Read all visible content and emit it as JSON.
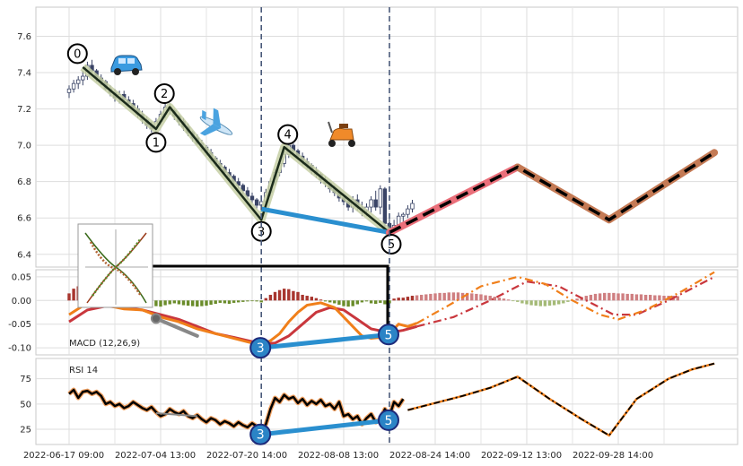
{
  "chart_data": {
    "type": "line",
    "x_tick_labels": [
      "2022-06-17 09:00",
      "2022-07-04 13:00",
      "2022-07-20 14:00",
      "2022-08-08 13:00",
      "2022-08-24 14:00",
      "2022-09-12 13:00",
      "2022-09-28 14:00"
    ],
    "x_tick_index": [
      0,
      20,
      40,
      60,
      80,
      100,
      120
    ],
    "vlines_index": [
      42,
      70
    ],
    "price": {
      "ylim": [
        6.33,
        7.76
      ],
      "yticks": [
        6.4,
        6.6,
        6.8,
        7.0,
        7.2,
        7.4,
        7.6
      ],
      "candles": [
        [
          7.29,
          7.33,
          7.26,
          7.31
        ],
        [
          7.31,
          7.36,
          7.29,
          7.34
        ],
        [
          7.34,
          7.38,
          7.31,
          7.36
        ],
        [
          7.36,
          7.41,
          7.33,
          7.38
        ],
        [
          7.38,
          7.46,
          7.36,
          7.44
        ],
        [
          7.44,
          7.47,
          7.4,
          7.41
        ],
        [
          7.41,
          7.42,
          7.35,
          7.37
        ],
        [
          7.37,
          7.39,
          7.33,
          7.35
        ],
        [
          7.35,
          7.36,
          7.3,
          7.31
        ],
        [
          7.31,
          7.33,
          7.27,
          7.29
        ],
        [
          7.29,
          7.31,
          7.24,
          7.26
        ],
        [
          7.26,
          7.3,
          7.23,
          7.28
        ],
        [
          7.28,
          7.3,
          7.24,
          7.25
        ],
        [
          7.25,
          7.27,
          7.21,
          7.23
        ],
        [
          7.23,
          7.25,
          7.19,
          7.2
        ],
        [
          7.2,
          7.22,
          7.15,
          7.17
        ],
        [
          7.17,
          7.19,
          7.12,
          7.14
        ],
        [
          7.14,
          7.16,
          7.09,
          7.11
        ],
        [
          7.11,
          7.13,
          7.07,
          7.09
        ],
        [
          7.09,
          7.15,
          7.07,
          7.13
        ],
        [
          7.13,
          7.19,
          7.11,
          7.17
        ],
        [
          7.17,
          7.24,
          7.15,
          7.21
        ],
        [
          7.21,
          7.23,
          7.17,
          7.19
        ],
        [
          7.19,
          7.2,
          7.14,
          7.16
        ],
        [
          7.16,
          7.17,
          7.11,
          7.13
        ],
        [
          7.13,
          7.15,
          7.08,
          7.1
        ],
        [
          7.1,
          7.12,
          7.05,
          7.07
        ],
        [
          7.07,
          7.08,
          7.02,
          7.04
        ],
        [
          7.04,
          7.06,
          7.0,
          7.01
        ],
        [
          7.01,
          7.03,
          6.97,
          6.99
        ],
        [
          6.99,
          7.0,
          6.94,
          6.96
        ],
        [
          6.96,
          6.98,
          6.91,
          6.93
        ],
        [
          6.93,
          6.94,
          6.88,
          6.9
        ],
        [
          6.9,
          6.92,
          6.86,
          6.88
        ],
        [
          6.88,
          6.89,
          6.83,
          6.85
        ],
        [
          6.85,
          6.87,
          6.81,
          6.83
        ],
        [
          6.83,
          6.84,
          6.78,
          6.8
        ],
        [
          6.8,
          6.82,
          6.76,
          6.78
        ],
        [
          6.78,
          6.79,
          6.73,
          6.75
        ],
        [
          6.75,
          6.77,
          6.7,
          6.72
        ],
        [
          6.72,
          6.74,
          6.68,
          6.7
        ],
        [
          6.7,
          6.71,
          6.65,
          6.67
        ],
        [
          6.67,
          6.7,
          6.64,
          6.69
        ],
        [
          6.69,
          6.76,
          6.67,
          6.74
        ],
        [
          6.74,
          6.82,
          6.72,
          6.8
        ],
        [
          6.8,
          6.87,
          6.78,
          6.85
        ],
        [
          6.85,
          6.92,
          6.83,
          6.9
        ],
        [
          6.9,
          6.97,
          6.88,
          6.95
        ],
        [
          6.95,
          7.02,
          6.93,
          7.0
        ],
        [
          7.0,
          7.01,
          6.95,
          6.97
        ],
        [
          6.97,
          6.98,
          6.92,
          6.94
        ],
        [
          6.94,
          6.96,
          6.89,
          6.91
        ],
        [
          6.91,
          6.93,
          6.87,
          6.89
        ],
        [
          6.89,
          6.9,
          6.84,
          6.86
        ],
        [
          6.86,
          6.88,
          6.82,
          6.84
        ],
        [
          6.84,
          6.85,
          6.79,
          6.81
        ],
        [
          6.81,
          6.83,
          6.77,
          6.79
        ],
        [
          6.79,
          6.8,
          6.74,
          6.76
        ],
        [
          6.76,
          6.78,
          6.72,
          6.74
        ],
        [
          6.74,
          6.75,
          6.69,
          6.71
        ],
        [
          6.71,
          6.73,
          6.67,
          6.69
        ],
        [
          6.69,
          6.7,
          6.64,
          6.66
        ],
        [
          6.66,
          6.72,
          6.63,
          6.7
        ],
        [
          6.7,
          6.73,
          6.64,
          6.66
        ],
        [
          6.66,
          6.69,
          6.61,
          6.64
        ],
        [
          6.64,
          6.68,
          6.61,
          6.66
        ],
        [
          6.66,
          6.72,
          6.63,
          6.7
        ],
        [
          6.7,
          6.75,
          6.64,
          6.66
        ],
        [
          6.66,
          6.78,
          6.62,
          6.76
        ],
        [
          6.76,
          6.77,
          6.54,
          6.57
        ],
        [
          6.57,
          6.6,
          6.51,
          6.54
        ],
        [
          6.54,
          6.59,
          6.52,
          6.56
        ],
        [
          6.56,
          6.63,
          6.55,
          6.61
        ],
        [
          6.61,
          6.63,
          6.58,
          6.62
        ],
        [
          6.62,
          6.67,
          6.6,
          6.65
        ],
        [
          6.65,
          6.7,
          6.63,
          6.68
        ]
      ],
      "zigzag": [
        [
          3,
          7.43
        ],
        [
          19,
          7.09
        ],
        [
          22,
          7.21
        ],
        [
          42,
          6.59
        ],
        [
          47,
          6.99
        ],
        [
          70,
          6.52
        ]
      ],
      "zigzag_labels": [
        "0",
        "1",
        "2",
        "3",
        "4",
        "5"
      ],
      "divergence": [
        [
          42,
          6.65
        ],
        [
          70,
          6.52
        ]
      ],
      "projection_pink": [
        [
          70,
          6.52
        ],
        [
          98,
          6.88
        ]
      ],
      "projection_dashed": [
        [
          98,
          6.88
        ],
        [
          118,
          6.59
        ],
        [
          141,
          6.96
        ]
      ],
      "icons": [
        "car-icon",
        "airplane-icon",
        "scooter-icon",
        "figure-thumbnail"
      ]
    },
    "macd": {
      "title": "MACD (12,26,9)",
      "ylim": [
        -0.115,
        0.065
      ],
      "yticks": [
        -0.1,
        -0.05,
        0.0,
        0.05
      ],
      "hist": [
        0.015,
        0.025,
        0.03,
        0.028,
        0.02,
        0.01,
        0.005,
        -0.002,
        -0.008,
        -0.012,
        -0.015,
        -0.012,
        -0.014,
        -0.016,
        -0.013,
        -0.011,
        -0.009,
        -0.008,
        -0.01,
        -0.012,
        -0.013,
        -0.01,
        -0.008,
        -0.006,
        -0.008,
        -0.01,
        -0.011,
        -0.012,
        -0.013,
        -0.012,
        -0.011,
        -0.009,
        -0.007,
        -0.005,
        -0.006,
        -0.007,
        -0.005,
        -0.004,
        -0.003,
        -0.002,
        -0.001,
        -0.002,
        -0.004,
        0.005,
        0.012,
        0.018,
        0.022,
        0.025,
        0.024,
        0.02,
        0.018,
        0.012,
        0.01,
        0.008,
        0.005,
        0.002,
        -0.002,
        -0.004,
        -0.006,
        -0.009,
        -0.012,
        -0.013,
        -0.012,
        -0.008,
        -0.004,
        -0.002,
        -0.006,
        -0.007,
        -0.005,
        -0.008,
        -0.006,
        0.004,
        0.006,
        0.006,
        0.008,
        0.01,
        0.011,
        0.012,
        0.013,
        0.014,
        0.015,
        0.016,
        0.016,
        0.017,
        0.017,
        0.017,
        0.016,
        0.016,
        0.015,
        0.014,
        0.013,
        0.011,
        0.01,
        0.008,
        0.006,
        0.004,
        0.002,
        -0.001,
        -0.003,
        -0.006,
        -0.008,
        -0.01,
        -0.011,
        -0.012,
        -0.012,
        -0.011,
        -0.01,
        -0.008,
        -0.006,
        -0.003,
        0.001,
        0.004,
        0.007,
        0.01,
        0.012,
        0.014,
        0.015,
        0.016,
        0.016,
        0.016,
        0.015,
        0.015,
        0.014,
        0.014,
        0.013,
        0.013,
        0.012,
        0.012,
        0.011,
        0.011,
        0.01,
        0.01,
        0.01,
        0.009
      ],
      "macd_line": [
        [
          0,
          -0.03
        ],
        [
          4,
          -0.005
        ],
        [
          8,
          -0.01
        ],
        [
          12,
          -0.018
        ],
        [
          16,
          -0.02
        ],
        [
          20,
          -0.035
        ],
        [
          24,
          -0.045
        ],
        [
          28,
          -0.06
        ],
        [
          32,
          -0.07
        ],
        [
          36,
          -0.08
        ],
        [
          40,
          -0.09
        ],
        [
          42,
          -0.094
        ],
        [
          44,
          -0.085
        ],
        [
          46,
          -0.07
        ],
        [
          48,
          -0.045
        ],
        [
          50,
          -0.025
        ],
        [
          52,
          -0.01
        ],
        [
          55,
          -0.005
        ],
        [
          58,
          -0.015
        ],
        [
          61,
          -0.045
        ],
        [
          64,
          -0.075
        ],
        [
          66,
          -0.08
        ],
        [
          68,
          -0.078
        ],
        [
          70,
          -0.07
        ],
        [
          72,
          -0.05
        ],
        [
          74,
          -0.055
        ],
        [
          76,
          -0.048
        ]
      ],
      "signal_line": [
        [
          0,
          -0.045
        ],
        [
          4,
          -0.02
        ],
        [
          8,
          -0.012
        ],
        [
          12,
          -0.015
        ],
        [
          16,
          -0.02
        ],
        [
          20,
          -0.03
        ],
        [
          24,
          -0.04
        ],
        [
          28,
          -0.055
        ],
        [
          32,
          -0.07
        ],
        [
          36,
          -0.078
        ],
        [
          40,
          -0.087
        ],
        [
          42,
          -0.092
        ],
        [
          45,
          -0.09
        ],
        [
          48,
          -0.075
        ],
        [
          51,
          -0.05
        ],
        [
          54,
          -0.025
        ],
        [
          57,
          -0.015
        ],
        [
          60,
          -0.02
        ],
        [
          63,
          -0.04
        ],
        [
          66,
          -0.06
        ],
        [
          70,
          -0.068
        ],
        [
          73,
          -0.063
        ],
        [
          76,
          -0.055
        ]
      ],
      "proj_macd": [
        [
          76,
          -0.048
        ],
        [
          83,
          -0.01
        ],
        [
          90,
          0.03
        ],
        [
          98,
          0.05
        ],
        [
          104,
          0.035
        ],
        [
          110,
          0
        ],
        [
          116,
          -0.03
        ],
        [
          120,
          -0.04
        ],
        [
          126,
          -0.02
        ],
        [
          134,
          0.02
        ],
        [
          141,
          0.06
        ]
      ],
      "proj_signal": [
        [
          76,
          -0.055
        ],
        [
          84,
          -0.035
        ],
        [
          92,
          0
        ],
        [
          100,
          0.04
        ],
        [
          107,
          0.03
        ],
        [
          113,
          0
        ],
        [
          119,
          -0.03
        ],
        [
          124,
          -0.03
        ],
        [
          131,
          0
        ],
        [
          141,
          0.05
        ]
      ],
      "divergence": [
        [
          42,
          -0.1
        ],
        [
          70,
          -0.072
        ]
      ],
      "grey_segment": [
        [
          19,
          -0.038
        ],
        [
          28,
          -0.075
        ]
      ],
      "labels": [
        "3",
        "5"
      ]
    },
    "rsi": {
      "title": "RSI 14",
      "ylim": [
        10,
        95
      ],
      "yticks": [
        25,
        50,
        75
      ],
      "values": [
        [
          0,
          60
        ],
        [
          1,
          64
        ],
        [
          2,
          56
        ],
        [
          3,
          62
        ],
        [
          4,
          63
        ],
        [
          5,
          60
        ],
        [
          6,
          62
        ],
        [
          7,
          58
        ],
        [
          8,
          50
        ],
        [
          9,
          52
        ],
        [
          10,
          48
        ],
        [
          11,
          50
        ],
        [
          12,
          46
        ],
        [
          13,
          48
        ],
        [
          14,
          52
        ],
        [
          15,
          49
        ],
        [
          16,
          46
        ],
        [
          17,
          44
        ],
        [
          18,
          47
        ],
        [
          19,
          42
        ],
        [
          20,
          38
        ],
        [
          21,
          40
        ],
        [
          22,
          45
        ],
        [
          23,
          42
        ],
        [
          24,
          40
        ],
        [
          25,
          43
        ],
        [
          26,
          38
        ],
        [
          27,
          36
        ],
        [
          28,
          39
        ],
        [
          29,
          35
        ],
        [
          30,
          32
        ],
        [
          31,
          36
        ],
        [
          32,
          34
        ],
        [
          33,
          30
        ],
        [
          34,
          33
        ],
        [
          35,
          31
        ],
        [
          36,
          28
        ],
        [
          37,
          32
        ],
        [
          38,
          29
        ],
        [
          39,
          27
        ],
        [
          40,
          31
        ],
        [
          41,
          28
        ],
        [
          42,
          22
        ],
        [
          43,
          30
        ],
        [
          44,
          45
        ],
        [
          45,
          56
        ],
        [
          46,
          52
        ],
        [
          47,
          59
        ],
        [
          48,
          55
        ],
        [
          49,
          57
        ],
        [
          50,
          51
        ],
        [
          51,
          55
        ],
        [
          52,
          49
        ],
        [
          53,
          53
        ],
        [
          54,
          50
        ],
        [
          55,
          54
        ],
        [
          56,
          48
        ],
        [
          57,
          50
        ],
        [
          58,
          45
        ],
        [
          59,
          52
        ],
        [
          60,
          38
        ],
        [
          61,
          40
        ],
        [
          62,
          35
        ],
        [
          63,
          38
        ],
        [
          64,
          30
        ],
        [
          65,
          36
        ],
        [
          66,
          40
        ],
        [
          67,
          32
        ],
        [
          68,
          35
        ],
        [
          69,
          45
        ],
        [
          70,
          38
        ],
        [
          71,
          52
        ],
        [
          72,
          48
        ],
        [
          73,
          55
        ]
      ],
      "projection": [
        [
          74,
          44
        ],
        [
          80,
          51
        ],
        [
          86,
          58
        ],
        [
          92,
          66
        ],
        [
          98,
          77
        ],
        [
          105,
          55
        ],
        [
          112,
          35
        ],
        [
          118,
          19
        ],
        [
          124,
          55
        ],
        [
          131,
          75
        ],
        [
          136,
          84
        ],
        [
          141,
          90
        ]
      ],
      "divergence": [
        [
          42,
          20
        ],
        [
          70,
          34
        ]
      ],
      "labels": [
        "3",
        "5"
      ]
    },
    "colors": {
      "candle_up": "#ffffff",
      "candle_down": "#3a4466",
      "zigzag": "#1a2a1a",
      "zigzag_glow": "#c5cfa5",
      "divergence": "#2a8fcf",
      "projection_pink": "#ea6f7a",
      "projection_brown": "#c47a55",
      "macd": "#f07f1a",
      "signal": "#c9373d",
      "hist_pos": "#a8352e",
      "hist_neg": "#6a8c2a",
      "hist_pos_light": "#cf7f81",
      "hist_neg_light": "#a4ba77",
      "vline": "#4a5a7a",
      "label_blue": "#2b84c6"
    }
  }
}
